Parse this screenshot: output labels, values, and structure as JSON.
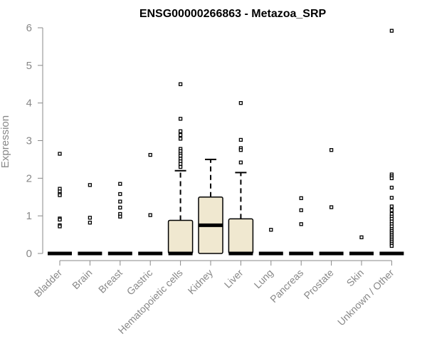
{
  "chart_data": {
    "type": "boxplot",
    "title": "ENSG00000266863 - Metazoa_SRP",
    "ylabel": "Expression",
    "xlabel": "",
    "ylim": [
      0,
      6
    ],
    "yticks": [
      0,
      1,
      2,
      3,
      4,
      5,
      6
    ],
    "grid": false,
    "box_color": "#f0e8d0",
    "categories": [
      "Bladder",
      "Brain",
      "Breast",
      "Gastric",
      "Hematopoietic cells",
      "Kidney",
      "Liver",
      "Lung",
      "Pancreas",
      "Prostate",
      "Skin",
      "Unknown / Other"
    ],
    "boxes": [
      {
        "q1": 0,
        "median": 0,
        "q3": 0,
        "whisker_low": 0,
        "whisker_high": 0,
        "outliers": [
          2.65,
          1.72,
          1.65,
          1.58,
          1.55,
          0.93,
          0.9,
          0.75,
          0.72
        ]
      },
      {
        "q1": 0,
        "median": 0,
        "q3": 0,
        "whisker_low": 0,
        "whisker_high": 0,
        "outliers": [
          1.82,
          0.95,
          0.82
        ]
      },
      {
        "q1": 0,
        "median": 0,
        "q3": 0,
        "whisker_low": 0,
        "whisker_high": 0,
        "outliers": [
          1.85,
          1.58,
          1.38,
          1.22,
          1.05,
          0.98
        ]
      },
      {
        "q1": 0,
        "median": 0,
        "q3": 0,
        "whisker_low": 0,
        "whisker_high": 0,
        "outliers": [
          2.62,
          1.02
        ]
      },
      {
        "q1": 0,
        "median": 0,
        "q3": 0.88,
        "whisker_low": 0,
        "whisker_high": 2.2,
        "outliers": [
          4.5,
          3.58,
          3.25,
          3.15,
          3.05,
          2.78,
          2.72,
          2.65,
          2.6,
          2.52,
          2.45,
          2.38,
          2.3
        ]
      },
      {
        "q1": 0,
        "median": 0.75,
        "q3": 1.5,
        "whisker_low": 0,
        "whisker_high": 2.5,
        "outliers": []
      },
      {
        "q1": 0,
        "median": 0,
        "q3": 0.92,
        "whisker_low": 0,
        "whisker_high": 2.15,
        "outliers": [
          4.0,
          3.02,
          2.8,
          2.75,
          2.42
        ]
      },
      {
        "q1": 0,
        "median": 0,
        "q3": 0,
        "whisker_low": 0,
        "whisker_high": 0,
        "outliers": [
          0.63
        ]
      },
      {
        "q1": 0,
        "median": 0,
        "q3": 0,
        "whisker_low": 0,
        "whisker_high": 0,
        "outliers": [
          1.47,
          1.15,
          0.78
        ]
      },
      {
        "q1": 0,
        "median": 0,
        "q3": 0,
        "whisker_low": 0,
        "whisker_high": 0,
        "outliers": [
          2.75,
          1.23
        ]
      },
      {
        "q1": 0,
        "median": 0,
        "q3": 0,
        "whisker_low": 0,
        "whisker_high": 0,
        "outliers": [
          0.43
        ]
      },
      {
        "q1": 0,
        "median": 0,
        "q3": 0,
        "whisker_low": 0,
        "whisker_high": 0,
        "outliers": [
          5.92,
          2.1,
          2.05,
          2.0,
          1.75,
          1.48,
          1.25,
          1.15,
          1.05,
          0.98,
          0.92,
          0.85,
          0.78,
          0.72,
          0.65,
          0.6,
          0.55,
          0.5,
          0.45,
          0.4,
          0.35,
          0.3,
          0.25,
          0.2
        ]
      }
    ]
  }
}
